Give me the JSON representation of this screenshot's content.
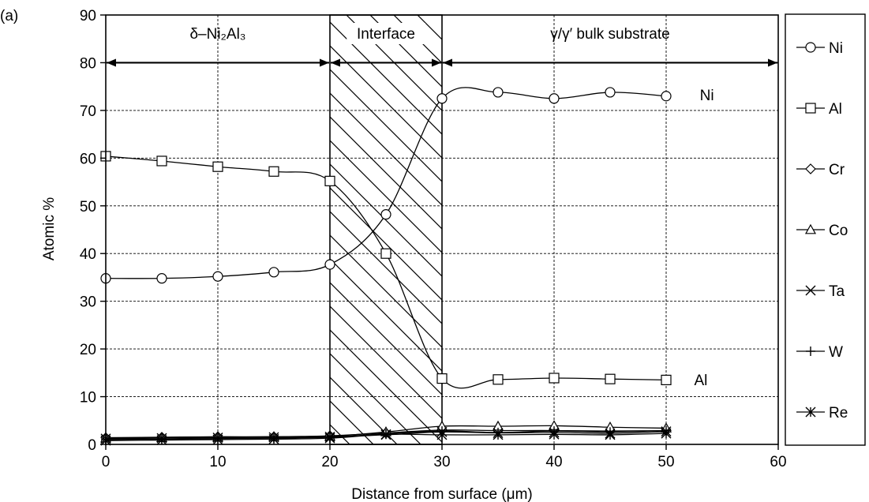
{
  "figure_label": "(a)",
  "chart_data": {
    "type": "line",
    "title": "",
    "xlabel": "Distance from surface (μm)",
    "ylabel": "Atomic %",
    "xlim": [
      0,
      60
    ],
    "ylim": [
      0,
      90
    ],
    "xticks": [
      0,
      10,
      20,
      30,
      40,
      50,
      60
    ],
    "yticks": [
      0,
      10,
      20,
      30,
      40,
      50,
      60,
      70,
      80,
      90
    ],
    "grid": true,
    "legend": "right",
    "x": [
      0,
      5,
      10,
      15,
      20,
      25,
      30,
      35,
      40,
      45,
      50
    ],
    "series": [
      {
        "name": "Ni",
        "marker": "circle",
        "values": [
          34.8,
          34.8,
          35.2,
          36.1,
          37.7,
          48.2,
          72.5,
          73.8,
          72.5,
          73.8,
          73.0
        ]
      },
      {
        "name": "Al",
        "marker": "square",
        "values": [
          60.4,
          59.4,
          58.2,
          57.2,
          55.2,
          40.0,
          13.8,
          13.6,
          13.9,
          13.7,
          13.5
        ]
      },
      {
        "name": "Cr",
        "marker": "diamond",
        "values": [
          1.4,
          1.5,
          1.6,
          1.6,
          1.8,
          2.4,
          3.0,
          2.9,
          2.9,
          2.8,
          2.9
        ]
      },
      {
        "name": "Co",
        "marker": "triangle",
        "values": [
          1.3,
          1.4,
          1.5,
          1.6,
          1.7,
          2.6,
          3.8,
          3.8,
          3.9,
          3.6,
          3.4
        ]
      },
      {
        "name": "Ta",
        "marker": "x",
        "values": [
          1.2,
          1.3,
          1.4,
          1.5,
          1.6,
          2.0,
          2.6,
          2.4,
          2.5,
          2.3,
          2.7
        ]
      },
      {
        "name": "W",
        "marker": "plus",
        "values": [
          1.0,
          1.1,
          1.2,
          1.3,
          1.5,
          2.2,
          2.8,
          2.5,
          2.8,
          2.6,
          2.9
        ]
      },
      {
        "name": "Re",
        "marker": "asterisk",
        "values": [
          0.8,
          0.9,
          1.0,
          1.1,
          1.3,
          2.1,
          2.0,
          2.0,
          2.1,
          2.0,
          2.3
        ]
      }
    ],
    "regions": [
      {
        "label": "δ–Ni₂Al₃",
        "x_start": 0,
        "x_end": 20,
        "hatched": false
      },
      {
        "label": "Interface",
        "x_start": 20,
        "x_end": 30,
        "hatched": true
      },
      {
        "label": "γ/γ′ bulk substrate",
        "x_start": 30,
        "x_end": 60,
        "hatched": false
      }
    ],
    "region_arrow_y": 80,
    "annotations": [
      {
        "text": "Ni",
        "x": 53,
        "y": 73.3
      },
      {
        "text": "Al",
        "x": 52.5,
        "y": 13.6
      }
    ]
  }
}
